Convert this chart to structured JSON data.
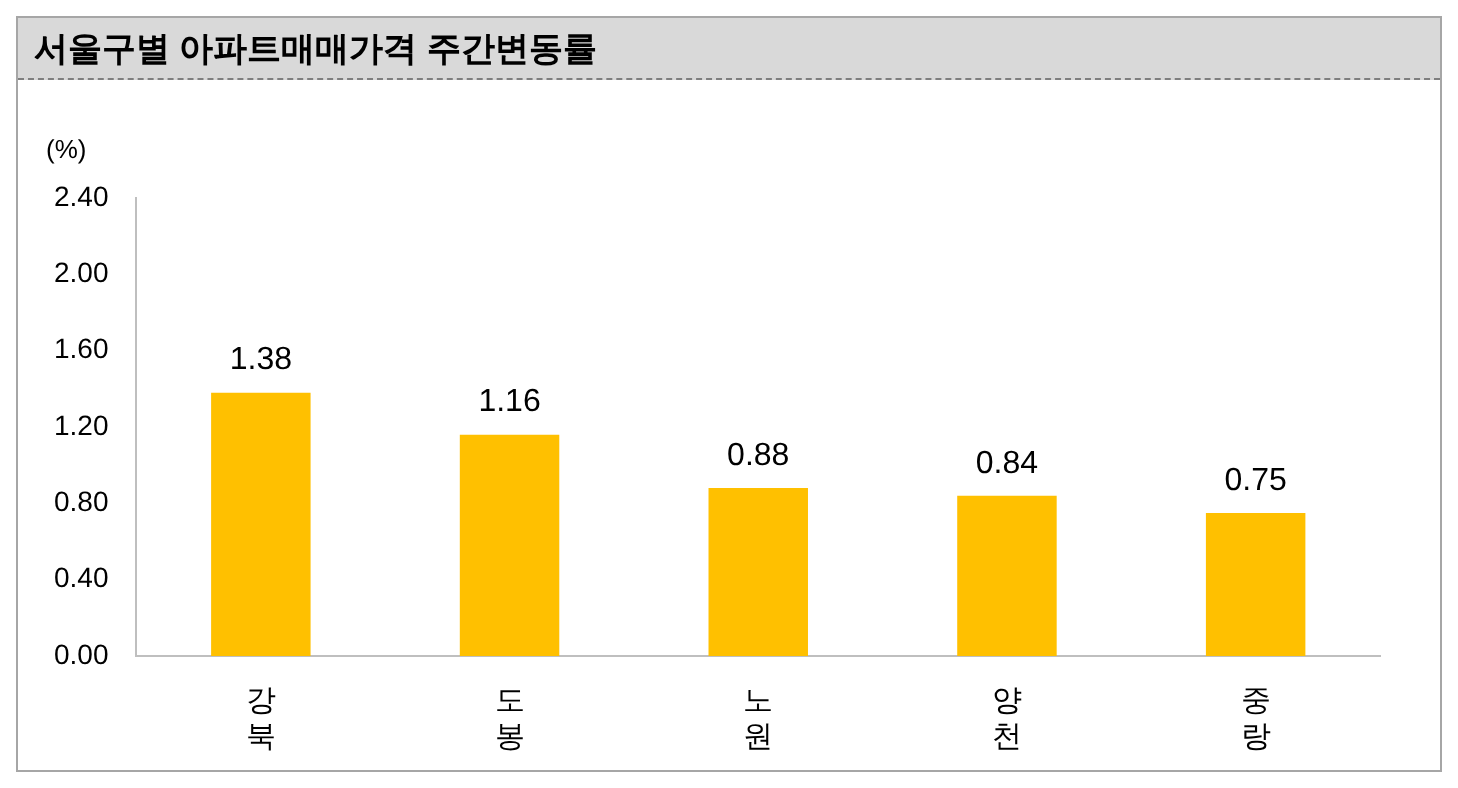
{
  "chart_data": {
    "type": "bar",
    "title": "서울구별 아파트매매가격 주간변동률",
    "ylabel": "(%)",
    "categories": [
      "강북",
      "도봉",
      "노원",
      "양천",
      "중랑"
    ],
    "values": [
      1.38,
      1.16,
      0.88,
      0.84,
      0.75
    ],
    "color": "#ffc000",
    "ylim": [
      0,
      2.4
    ],
    "yticks": [
      {
        "value": 0,
        "label": "0.00"
      },
      {
        "value": 0.4,
        "label": "0.40"
      },
      {
        "value": 0.8,
        "label": "0.80"
      },
      {
        "value": 1.2,
        "label": "1.20"
      },
      {
        "value": 1.6,
        "label": "1.60"
      },
      {
        "value": 2.0,
        "label": "2.00"
      },
      {
        "value": 2.4,
        "label": "2.40"
      }
    ],
    "grid": false,
    "legend": false,
    "data_labels": true
  }
}
